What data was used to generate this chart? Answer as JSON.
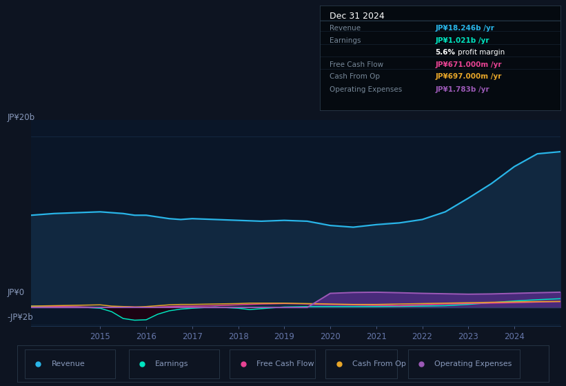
{
  "bg_color": "#0d1421",
  "plot_bg_color": "#0a1628",
  "grid_color": "#1e3a5a",
  "ylabel_top": "JP¥20b",
  "ylabel_zero": "JP¥0",
  "ylabel_neg": "-JP¥2b",
  "ylim": [
    -2.2,
    22.0
  ],
  "years": [
    2013.5,
    2014.0,
    2014.5,
    2015.0,
    2015.25,
    2015.5,
    2015.75,
    2016.0,
    2016.25,
    2016.5,
    2016.75,
    2017.0,
    2017.5,
    2018.0,
    2018.25,
    2018.5,
    2019.0,
    2019.5,
    2020.0,
    2020.5,
    2021.0,
    2021.5,
    2022.0,
    2022.5,
    2023.0,
    2023.5,
    2024.0,
    2024.5,
    2025.0
  ],
  "revenue": [
    10.8,
    11.0,
    11.1,
    11.2,
    11.1,
    11.0,
    10.8,
    10.8,
    10.6,
    10.4,
    10.3,
    10.4,
    10.3,
    10.2,
    10.15,
    10.1,
    10.2,
    10.1,
    9.6,
    9.4,
    9.7,
    9.9,
    10.3,
    11.2,
    12.8,
    14.5,
    16.5,
    18.0,
    18.246
  ],
  "earnings": [
    0.15,
    0.1,
    0.05,
    -0.1,
    -0.5,
    -1.3,
    -1.5,
    -1.45,
    -0.8,
    -0.4,
    -0.2,
    -0.1,
    0.05,
    -0.1,
    -0.25,
    -0.15,
    0.05,
    0.1,
    0.1,
    0.1,
    0.1,
    0.12,
    0.15,
    0.2,
    0.35,
    0.55,
    0.75,
    0.9,
    1.021
  ],
  "free_cash_flow": [
    0.05,
    0.1,
    0.08,
    0.0,
    0.05,
    0.1,
    0.05,
    0.0,
    0.05,
    0.1,
    0.15,
    0.15,
    0.2,
    0.3,
    0.35,
    0.4,
    0.45,
    0.4,
    0.35,
    0.3,
    0.25,
    0.2,
    0.3,
    0.4,
    0.45,
    0.5,
    0.55,
    0.62,
    0.671
  ],
  "cash_from_op": [
    0.15,
    0.2,
    0.25,
    0.3,
    0.15,
    0.1,
    0.05,
    0.1,
    0.2,
    0.3,
    0.35,
    0.35,
    0.4,
    0.45,
    0.5,
    0.5,
    0.5,
    0.45,
    0.4,
    0.35,
    0.35,
    0.4,
    0.45,
    0.5,
    0.55,
    0.6,
    0.65,
    0.68,
    0.697
  ],
  "operating_expenses": [
    0.0,
    0.0,
    0.0,
    0.0,
    0.0,
    0.0,
    0.0,
    0.0,
    0.0,
    0.0,
    0.0,
    0.0,
    0.0,
    0.0,
    0.0,
    0.0,
    0.0,
    0.0,
    1.65,
    1.75,
    1.78,
    1.72,
    1.65,
    1.6,
    1.55,
    1.58,
    1.65,
    1.72,
    1.783
  ],
  "revenue_color": "#29b5e8",
  "earnings_color": "#00e5c0",
  "fcf_color": "#e84393",
  "cashop_color": "#e8a629",
  "opex_color": "#9b59b6",
  "revenue_fill": "#112840",
  "opex_fill": "#5b2d8e",
  "info_box": {
    "title": "Dec 31 2024",
    "rows": [
      {
        "label": "Revenue",
        "value": "JP¥18.246b /yr",
        "value_color": "#29b5e8"
      },
      {
        "label": "Earnings",
        "value": "JP¥1.021b /yr",
        "value_color": "#00e5c0"
      },
      {
        "label": "",
        "value": "5.6% profit margin",
        "value_color": "#ffffff"
      },
      {
        "label": "Free Cash Flow",
        "value": "JP¥671.000m /yr",
        "value_color": "#e84393"
      },
      {
        "label": "Cash From Op",
        "value": "JP¥697.000m /yr",
        "value_color": "#e8a629"
      },
      {
        "label": "Operating Expenses",
        "value": "JP¥1.783b /yr",
        "value_color": "#9b59b6"
      }
    ]
  },
  "legend_items": [
    {
      "label": "Revenue",
      "color": "#29b5e8"
    },
    {
      "label": "Earnings",
      "color": "#00e5c0"
    },
    {
      "label": "Free Cash Flow",
      "color": "#e84393"
    },
    {
      "label": "Cash From Op",
      "color": "#e8a629"
    },
    {
      "label": "Operating Expenses",
      "color": "#9b59b6"
    }
  ],
  "xticks": [
    2015,
    2016,
    2017,
    2018,
    2019,
    2020,
    2021,
    2022,
    2023,
    2024
  ],
  "tick_color": "#6677aa",
  "text_color": "#8899bb",
  "label_color": "#8899aa"
}
